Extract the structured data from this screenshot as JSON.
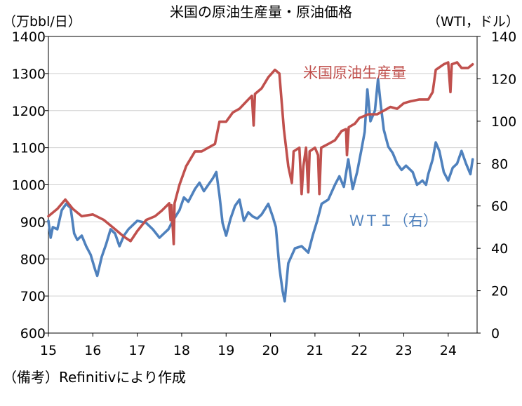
{
  "chart_data": {
    "type": "line",
    "title": "米国の原油生産量・原油価格",
    "ylabel_left": "（万bbl/日）",
    "ylabel_right": "（WTI，ドル）",
    "source_note": "（備考）Refinitivにより作成",
    "x_ticks": [
      "15",
      "16",
      "17",
      "18",
      "19",
      "20",
      "21",
      "22",
      "23",
      "24"
    ],
    "x_range": [
      2015.0,
      2024.65
    ],
    "ylim_left": [
      600,
      1400
    ],
    "ylim_right": [
      0,
      140
    ],
    "y_ticks_left": [
      600,
      700,
      800,
      900,
      1000,
      1100,
      1200,
      1300,
      1400
    ],
    "y_ticks_right": [
      0,
      20,
      40,
      60,
      80,
      100,
      120,
      140
    ],
    "grid": "horizontal",
    "series": [
      {
        "name": "米国原油生産量",
        "axis": "left",
        "color": "#c0504d",
        "points": [
          [
            2015.0,
            915
          ],
          [
            2015.2,
            935
          ],
          [
            2015.38,
            960
          ],
          [
            2015.55,
            935
          ],
          [
            2015.75,
            915
          ],
          [
            2016.0,
            920
          ],
          [
            2016.25,
            905
          ],
          [
            2016.45,
            885
          ],
          [
            2016.7,
            860
          ],
          [
            2016.85,
            848
          ],
          [
            2017.0,
            875
          ],
          [
            2017.2,
            905
          ],
          [
            2017.4,
            915
          ],
          [
            2017.55,
            930
          ],
          [
            2017.72,
            950
          ],
          [
            2017.75,
            905
          ],
          [
            2017.77,
            945
          ],
          [
            2017.82,
            840
          ],
          [
            2017.84,
            950
          ],
          [
            2017.95,
            1000
          ],
          [
            2018.1,
            1050
          ],
          [
            2018.3,
            1090
          ],
          [
            2018.45,
            1090
          ],
          [
            2018.6,
            1100
          ],
          [
            2018.75,
            1110
          ],
          [
            2018.85,
            1170
          ],
          [
            2019.0,
            1170
          ],
          [
            2019.15,
            1195
          ],
          [
            2019.3,
            1205
          ],
          [
            2019.5,
            1230
          ],
          [
            2019.58,
            1240
          ],
          [
            2019.62,
            1160
          ],
          [
            2019.65,
            1245
          ],
          [
            2019.8,
            1260
          ],
          [
            2019.95,
            1290
          ],
          [
            2020.1,
            1310
          ],
          [
            2020.2,
            1300
          ],
          [
            2020.3,
            1150
          ],
          [
            2020.4,
            1050
          ],
          [
            2020.48,
            1005
          ],
          [
            2020.52,
            1090
          ],
          [
            2020.65,
            1100
          ],
          [
            2020.7,
            975
          ],
          [
            2020.74,
            1050
          ],
          [
            2020.8,
            1100
          ],
          [
            2020.85,
            980
          ],
          [
            2020.88,
            1090
          ],
          [
            2021.0,
            1100
          ],
          [
            2021.07,
            1080
          ],
          [
            2021.1,
            975
          ],
          [
            2021.14,
            1100
          ],
          [
            2021.3,
            1110
          ],
          [
            2021.45,
            1120
          ],
          [
            2021.6,
            1145
          ],
          [
            2021.7,
            1150
          ],
          [
            2021.72,
            1080
          ],
          [
            2021.76,
            1155
          ],
          [
            2021.9,
            1165
          ],
          [
            2022.0,
            1180
          ],
          [
            2022.2,
            1190
          ],
          [
            2022.4,
            1190
          ],
          [
            2022.55,
            1200
          ],
          [
            2022.7,
            1210
          ],
          [
            2022.85,
            1205
          ],
          [
            2023.0,
            1220
          ],
          [
            2023.15,
            1225
          ],
          [
            2023.35,
            1230
          ],
          [
            2023.55,
            1230
          ],
          [
            2023.65,
            1250
          ],
          [
            2023.72,
            1310
          ],
          [
            2023.9,
            1325
          ],
          [
            2024.0,
            1330
          ],
          [
            2024.05,
            1250
          ],
          [
            2024.08,
            1325
          ],
          [
            2024.2,
            1330
          ],
          [
            2024.3,
            1315
          ],
          [
            2024.45,
            1315
          ],
          [
            2024.55,
            1325
          ]
        ]
      },
      {
        "name": "ＷＴＩ（右）",
        "axis": "right",
        "color": "#4f81bd",
        "points": [
          [
            2015.0,
            53
          ],
          [
            2015.05,
            45
          ],
          [
            2015.1,
            50
          ],
          [
            2015.2,
            49
          ],
          [
            2015.3,
            58
          ],
          [
            2015.4,
            61
          ],
          [
            2015.5,
            59
          ],
          [
            2015.58,
            47
          ],
          [
            2015.65,
            44
          ],
          [
            2015.75,
            46
          ],
          [
            2015.85,
            41
          ],
          [
            2015.95,
            37
          ],
          [
            2016.05,
            30
          ],
          [
            2016.1,
            27
          ],
          [
            2016.2,
            36
          ],
          [
            2016.3,
            42
          ],
          [
            2016.4,
            49
          ],
          [
            2016.5,
            47
          ],
          [
            2016.6,
            41
          ],
          [
            2016.7,
            46
          ],
          [
            2016.8,
            49
          ],
          [
            2016.9,
            51
          ],
          [
            2017.0,
            53
          ],
          [
            2017.2,
            52
          ],
          [
            2017.35,
            49
          ],
          [
            2017.5,
            45
          ],
          [
            2017.6,
            47
          ],
          [
            2017.7,
            49
          ],
          [
            2017.8,
            53
          ],
          [
            2017.95,
            58
          ],
          [
            2018.05,
            64
          ],
          [
            2018.15,
            62
          ],
          [
            2018.3,
            68
          ],
          [
            2018.4,
            71
          ],
          [
            2018.5,
            67
          ],
          [
            2018.6,
            70
          ],
          [
            2018.7,
            73
          ],
          [
            2018.78,
            76
          ],
          [
            2018.85,
            65
          ],
          [
            2018.92,
            52
          ],
          [
            2019.0,
            46
          ],
          [
            2019.1,
            54
          ],
          [
            2019.2,
            60
          ],
          [
            2019.3,
            63
          ],
          [
            2019.4,
            53
          ],
          [
            2019.5,
            57
          ],
          [
            2019.6,
            55
          ],
          [
            2019.7,
            54
          ],
          [
            2019.8,
            56
          ],
          [
            2019.95,
            61
          ],
          [
            2020.05,
            55
          ],
          [
            2020.12,
            50
          ],
          [
            2020.2,
            31
          ],
          [
            2020.27,
            20
          ],
          [
            2020.32,
            15
          ],
          [
            2020.4,
            33
          ],
          [
            2020.55,
            40
          ],
          [
            2020.7,
            41
          ],
          [
            2020.85,
            38
          ],
          [
            2020.95,
            46
          ],
          [
            2021.05,
            53
          ],
          [
            2021.15,
            61
          ],
          [
            2021.3,
            63
          ],
          [
            2021.45,
            70
          ],
          [
            2021.55,
            74
          ],
          [
            2021.65,
            69
          ],
          [
            2021.75,
            82
          ],
          [
            2021.85,
            68
          ],
          [
            2021.95,
            76
          ],
          [
            2022.05,
            87
          ],
          [
            2022.12,
            95
          ],
          [
            2022.18,
            115
          ],
          [
            2022.25,
            100
          ],
          [
            2022.35,
            105
          ],
          [
            2022.42,
            120
          ],
          [
            2022.48,
            108
          ],
          [
            2022.55,
            96
          ],
          [
            2022.65,
            88
          ],
          [
            2022.75,
            85
          ],
          [
            2022.85,
            80
          ],
          [
            2022.95,
            77
          ],
          [
            2023.05,
            79
          ],
          [
            2023.2,
            76
          ],
          [
            2023.3,
            70
          ],
          [
            2023.42,
            72
          ],
          [
            2023.5,
            70
          ],
          [
            2023.55,
            75
          ],
          [
            2023.65,
            82
          ],
          [
            2023.72,
            90
          ],
          [
            2023.8,
            86
          ],
          [
            2023.9,
            76
          ],
          [
            2024.0,
            72
          ],
          [
            2024.1,
            78
          ],
          [
            2024.2,
            80
          ],
          [
            2024.3,
            86
          ],
          [
            2024.4,
            80
          ],
          [
            2024.5,
            75
          ],
          [
            2024.55,
            82
          ]
        ]
      }
    ]
  }
}
